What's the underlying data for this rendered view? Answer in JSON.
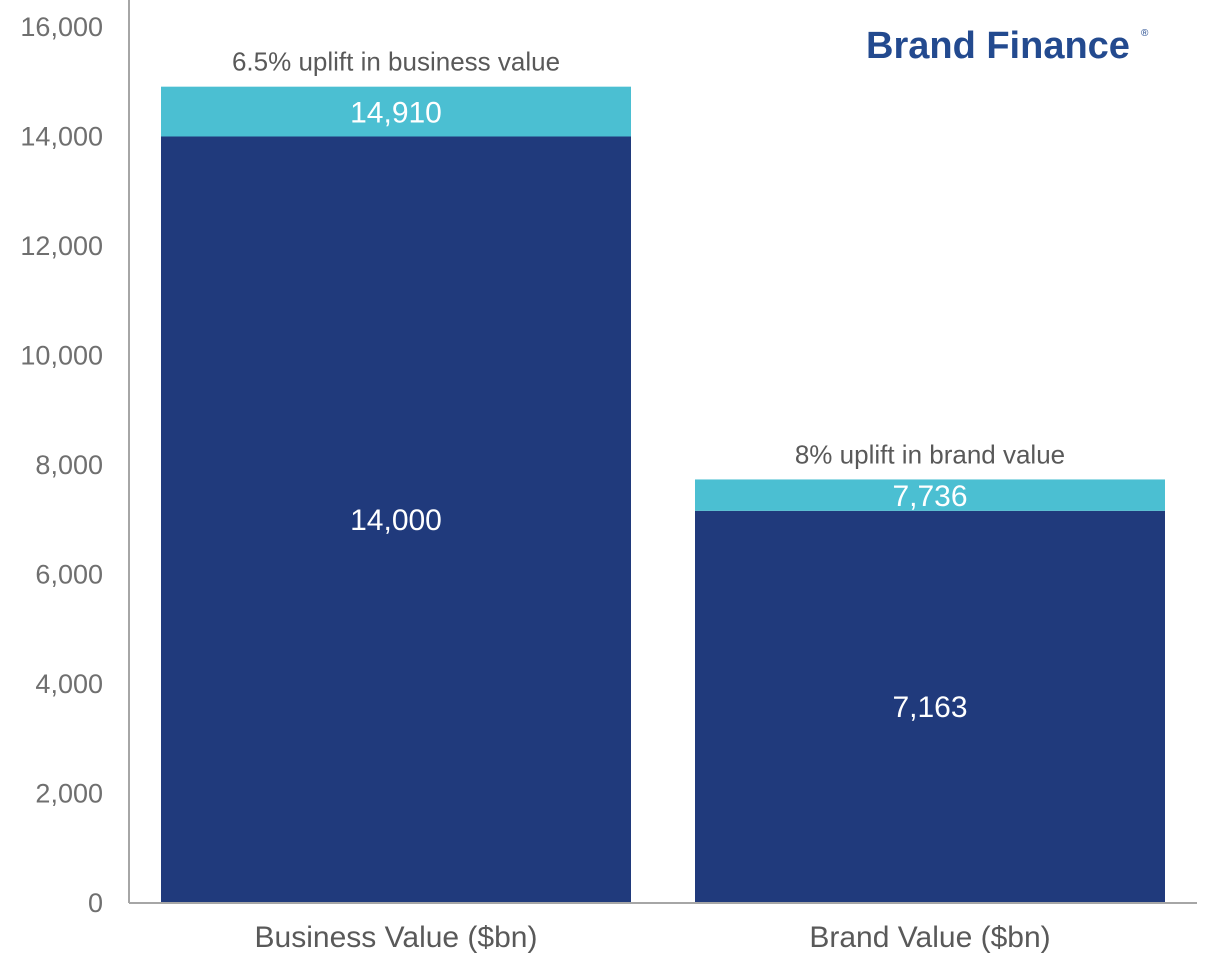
{
  "logo": {
    "text": "Brand Finance",
    "mark": "®"
  },
  "colors": {
    "base": "#203a7c",
    "uplift": "#4bbfd2",
    "axis": "#a6a6a6"
  },
  "chart_data": {
    "type": "bar",
    "stacked": true,
    "categories": [
      "Business Value ($bn)",
      "Brand Value ($bn)"
    ],
    "series": [
      {
        "role": "base",
        "values": [
          14000,
          7163
        ]
      },
      {
        "role": "uplift",
        "values": [
          910,
          573
        ]
      }
    ],
    "base_labels": [
      "14,000",
      "7,163"
    ],
    "total_labels": [
      "14,910",
      "7,736"
    ],
    "annotations": [
      "6.5% uplift in business value",
      "8% uplift in brand value"
    ],
    "ylim": [
      0,
      16000
    ],
    "yticks": [
      0,
      2000,
      4000,
      6000,
      8000,
      10000,
      12000,
      14000,
      16000
    ],
    "ytick_labels": [
      "0",
      "2,000",
      "4,000",
      "6,000",
      "8,000",
      "10,000",
      "12,000",
      "14,000",
      "16,000"
    ],
    "grid": false,
    "legend": "none"
  }
}
